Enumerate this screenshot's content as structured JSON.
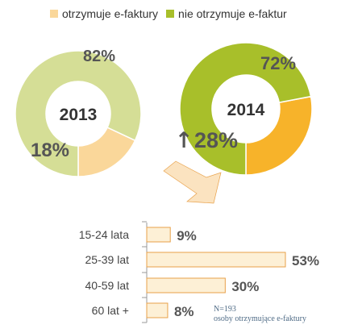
{
  "legend": [
    {
      "label": "otrzymuje e-faktury",
      "color": "#fad79a"
    },
    {
      "label": "nie otrzymuje e-faktur",
      "color": "#a8bf2a"
    }
  ],
  "colors": {
    "receives_2013": "#fad79a",
    "not_2013": "#d5de96",
    "receives_2014": "#f7b32a",
    "not_2014": "#a8bf2a",
    "bar_fill": "#fdf0d6",
    "bar_stroke": "#e8a14a",
    "arrow_fill": "#fbe3c0",
    "text_dark": "#555555",
    "axis": "#999999"
  },
  "chart_data": [
    {
      "type": "pie",
      "center_label": "2013",
      "categories": [
        "otrzymuje e-faktury",
        "nie otrzymuje e-faktur"
      ],
      "values": [
        18,
        82
      ],
      "labels": [
        "18%",
        "82%"
      ]
    },
    {
      "type": "pie",
      "center_label": "2014",
      "categories": [
        "otrzymuje e-faktury",
        "nie otrzymuje e-faktur"
      ],
      "values": [
        28,
        72
      ],
      "labels": [
        "28%",
        "72%"
      ],
      "annotation": "↑"
    },
    {
      "type": "bar",
      "orientation": "horizontal",
      "categories": [
        "15-24 lata",
        "25-39 lat",
        "40-59 lat",
        "60 lat +"
      ],
      "values": [
        9,
        53,
        30,
        8
      ],
      "labels": [
        "9%",
        "53%",
        "30%",
        "8%"
      ],
      "xlim": [
        0,
        53
      ]
    }
  ],
  "notes": {
    "n": "N=193",
    "subset": "osoby otrzymujące e-faktury"
  }
}
